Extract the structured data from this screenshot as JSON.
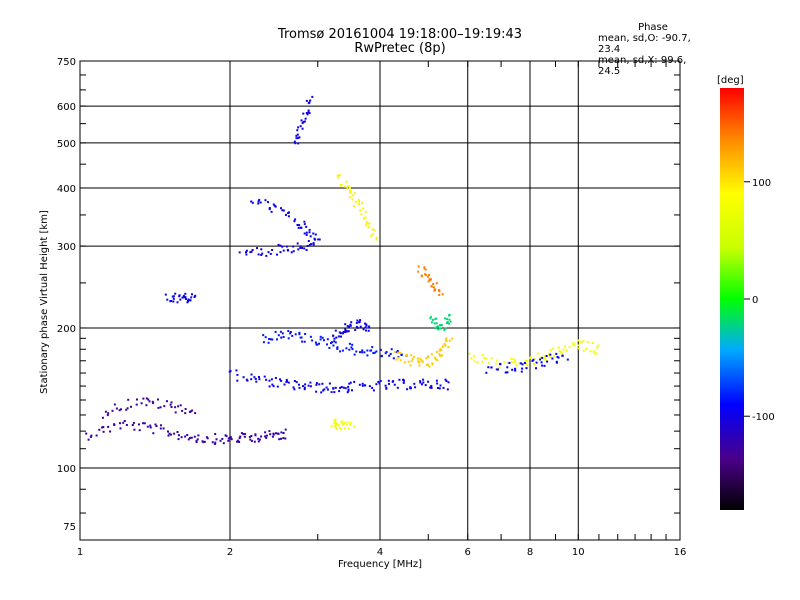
{
  "chart_data": {
    "type": "scatter",
    "title": "Tromsø 20161004 19:18:00–19:19:43",
    "subtitle": "RwPretec (8p)",
    "xlabel": "Frequency [MHz]",
    "ylabel": "Stationary phase Virtual Height [km]",
    "xscale": "log",
    "yscale": "log",
    "xlim": [
      1,
      16
    ],
    "ylim": [
      70,
      750
    ],
    "x_ticks": [
      1,
      2,
      4,
      6,
      8,
      10,
      16
    ],
    "y_ticks": [
      75,
      100,
      200,
      300,
      400,
      500,
      600,
      750
    ],
    "grid": true,
    "phase_box": {
      "heading": "Phase",
      "line1": "mean, sd,O: -90.7, 23.4",
      "line2": "mean, sd,X:  99.6, 24.5"
    },
    "colorbar": {
      "label": "[deg]",
      "ticks": [
        100,
        0,
        -100
      ],
      "range": [
        -180,
        180
      ],
      "colormap": "rainbow"
    },
    "series": [
      {
        "traces": [
          {
            "x": [
              1.02,
              1.2,
              1.4,
              1.6,
              1.8,
              2.0,
              2.2,
              2.4,
              2.6
            ],
            "y": [
              118,
              125,
              122,
              118,
              116,
              116,
              117,
              118,
              119
            ],
            "phase": -125
          },
          {
            "x": [
              1.1,
              1.3,
              1.5,
              1.7
            ],
            "y": [
              132,
              140,
              137,
              133
            ],
            "phase": -130
          },
          {
            "x": [
              2.0,
              2.3,
              2.6,
              2.9,
              3.2,
              3.5,
              4.0,
              4.5,
              5.0,
              5.5
            ],
            "y": [
              160,
              155,
              152,
              150,
              149,
              150,
              151,
              152,
              152,
              152
            ],
            "phase": -95
          },
          {
            "x": [
              2.1,
              2.4,
              2.7,
              3.0
            ],
            "y": [
              290,
              295,
              300,
              305
            ],
            "phase": -100
          },
          {
            "x": [
              2.2,
              2.5,
              2.8,
              3.0
            ],
            "y": [
              380,
              360,
              330,
              310
            ],
            "phase": -95
          },
          {
            "x": [
              2.7,
              2.8,
              2.9
            ],
            "y": [
              500,
              560,
              620
            ],
            "phase": -100
          },
          {
            "x": [
              1.5,
              1.6,
              1.7
            ],
            "y": [
              232,
              233,
              232
            ],
            "phase": -95
          },
          {
            "x": [
              2.3,
              2.6,
              2.9,
              3.2,
              3.6,
              4.0,
              4.5
            ],
            "y": [
              190,
              195,
              190,
              185,
              180,
              178,
              176
            ],
            "phase": -85
          },
          {
            "x": [
              3.2,
              3.4,
              3.6,
              3.8
            ],
            "y": [
              190,
              200,
              205,
              200
            ],
            "phase": -100
          },
          {
            "x": [
              3.2,
              3.3,
              3.5
            ],
            "y": [
              125,
              124,
              125
            ],
            "phase": 80
          },
          {
            "x": [
              3.3,
              3.5,
              3.7,
              3.9
            ],
            "y": [
              420,
              390,
              350,
              310
            ],
            "phase": 95
          },
          {
            "x": [
              4.3,
              4.7,
              5.0,
              5.3,
              5.5
            ],
            "y": [
              175,
              170,
              170,
              180,
              190
            ],
            "phase": 110
          },
          {
            "x": [
              4.8,
              5.0,
              5.3
            ],
            "y": [
              270,
              250,
              240
            ],
            "phase": 140
          },
          {
            "x": [
              5.0,
              5.3,
              5.5
            ],
            "y": [
              210,
              200,
              215
            ],
            "phase": -20
          },
          {
            "x": [
              6.0,
              7.0,
              8.0,
              9.0,
              10.0,
              11.0
            ],
            "y": [
              175,
              168,
              170,
              178,
              185,
              180
            ],
            "phase": 80
          },
          {
            "x": [
              6.5,
              7.5,
              8.5,
              9.5
            ],
            "y": [
              165,
              165,
              170,
              175
            ],
            "phase": -90
          }
        ]
      }
    ]
  }
}
